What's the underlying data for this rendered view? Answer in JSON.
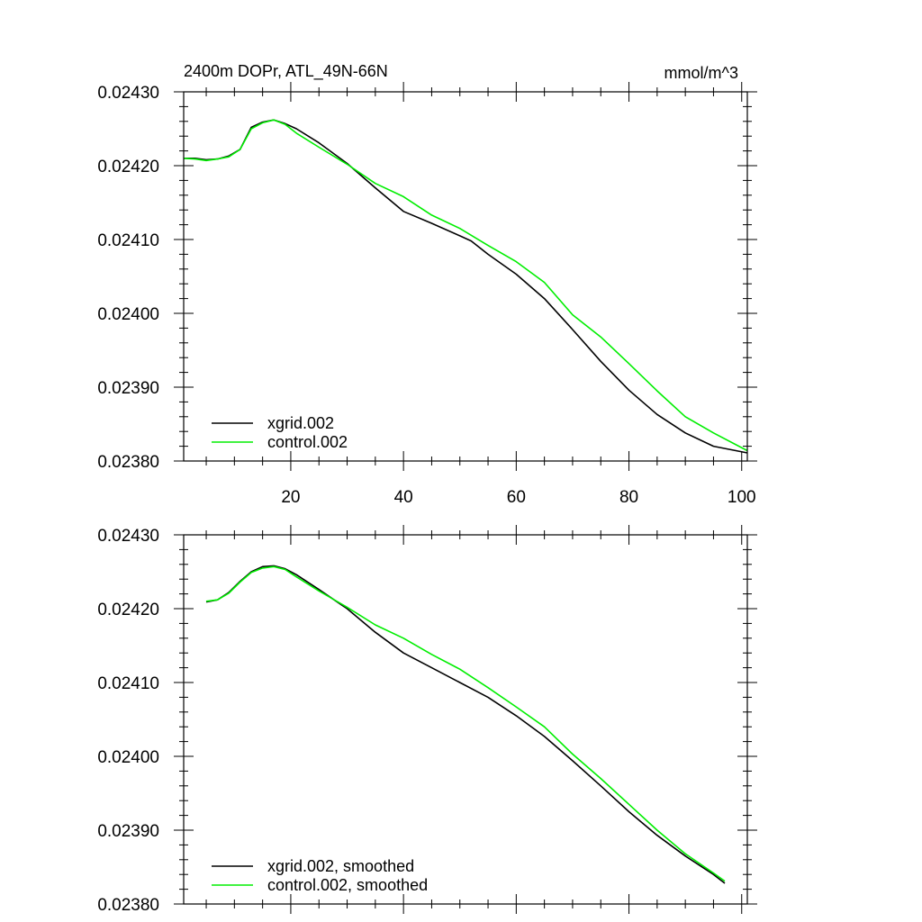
{
  "chart_data": [
    {
      "type": "line",
      "title": "2400m DOPr, ATL_49N-66N",
      "units": "mmol/m^3",
      "xlim": [
        1,
        101
      ],
      "ylim": [
        0.0238,
        0.0243
      ],
      "x_ticks": [
        20,
        40,
        60,
        80,
        100
      ],
      "x_tick_labels": [
        "20",
        "40",
        "60",
        "80",
        "100"
      ],
      "x_minor_ticks": [
        5,
        10,
        15,
        25,
        30,
        35,
        45,
        50,
        55,
        65,
        70,
        75,
        85,
        90,
        95
      ],
      "y_ticks": [
        0.0238,
        0.0239,
        0.024,
        0.0241,
        0.0242,
        0.0243
      ],
      "y_tick_labels": [
        "0.02380",
        "0.02390",
        "0.02400",
        "0.02410",
        "0.02420",
        "0.02430"
      ],
      "legend_position": "bottom-left",
      "series": [
        {
          "name": "xgrid.002",
          "color": "#000000",
          "x": [
            1,
            3,
            5,
            7,
            9,
            11,
            13,
            15,
            17,
            19,
            21,
            25,
            30,
            35,
            40,
            45,
            50,
            52,
            55,
            60,
            65,
            70,
            75,
            80,
            85,
            90,
            95,
            101
          ],
          "values": [
            0.02421,
            0.02421,
            0.024208,
            0.024209,
            0.024213,
            0.024222,
            0.024252,
            0.024259,
            0.024262,
            0.024257,
            0.02425,
            0.024231,
            0.024203,
            0.02417,
            0.024138,
            0.024122,
            0.024105,
            0.024098,
            0.02408,
            0.024053,
            0.02402,
            0.023978,
            0.023935,
            0.023896,
            0.023863,
            0.023838,
            0.02382,
            0.023811
          ]
        },
        {
          "name": "control.002",
          "color": "#00ee00",
          "x": [
            1,
            3,
            5,
            7,
            9,
            11,
            13,
            15,
            17,
            19,
            21,
            25,
            30,
            35,
            40,
            45,
            50,
            55,
            60,
            65,
            70,
            75,
            80,
            85,
            90,
            95,
            101
          ],
          "values": [
            0.02421,
            0.024209,
            0.024207,
            0.024209,
            0.024212,
            0.024222,
            0.02425,
            0.024258,
            0.024262,
            0.024256,
            0.024244,
            0.024225,
            0.024202,
            0.024176,
            0.024158,
            0.024133,
            0.024115,
            0.024092,
            0.02407,
            0.024042,
            0.023998,
            0.023968,
            0.023932,
            0.023895,
            0.02386,
            0.023838,
            0.023814
          ]
        }
      ]
    },
    {
      "type": "line",
      "title": "",
      "xlim": [
        1,
        101
      ],
      "ylim": [
        0.0238,
        0.0243
      ],
      "x_ticks": [
        20,
        40,
        60,
        80,
        100
      ],
      "x_minor_ticks": [
        5,
        10,
        15,
        25,
        30,
        35,
        45,
        50,
        55,
        65,
        70,
        75,
        85,
        90,
        95
      ],
      "y_ticks": [
        0.0238,
        0.0239,
        0.024,
        0.0241,
        0.0242,
        0.0243
      ],
      "y_tick_labels": [
        "0.02380",
        "0.02390",
        "0.02400",
        "0.02410",
        "0.02420",
        "0.02430"
      ],
      "legend_position": "bottom-left",
      "series": [
        {
          "name": "xgrid.002, smoothed",
          "color": "#000000",
          "x": [
            5,
            7,
            9,
            11,
            13,
            15,
            17,
            19,
            21,
            25,
            30,
            35,
            40,
            45,
            50,
            55,
            60,
            65,
            70,
            75,
            80,
            85,
            90,
            95,
            97
          ],
          "values": [
            0.024209,
            0.024212,
            0.024222,
            0.024237,
            0.02425,
            0.024257,
            0.024258,
            0.024254,
            0.024246,
            0.024226,
            0.0242,
            0.024168,
            0.02414,
            0.02412,
            0.0241,
            0.02408,
            0.024055,
            0.024027,
            0.023994,
            0.02396,
            0.023925,
            0.023893,
            0.023865,
            0.02384,
            0.023828
          ]
        },
        {
          "name": "control.002, smoothed",
          "color": "#00ee00",
          "x": [
            5,
            7,
            9,
            11,
            13,
            15,
            17,
            19,
            21,
            25,
            30,
            35,
            40,
            45,
            50,
            55,
            60,
            65,
            70,
            75,
            80,
            85,
            90,
            95,
            97
          ],
          "values": [
            0.02421,
            0.024212,
            0.024221,
            0.024236,
            0.024249,
            0.024255,
            0.024257,
            0.024253,
            0.024243,
            0.024224,
            0.024202,
            0.024178,
            0.02416,
            0.024138,
            0.024118,
            0.024093,
            0.024067,
            0.02404,
            0.024003,
            0.02397,
            0.023935,
            0.0239,
            0.023868,
            0.023842,
            0.023831
          ]
        }
      ]
    }
  ]
}
